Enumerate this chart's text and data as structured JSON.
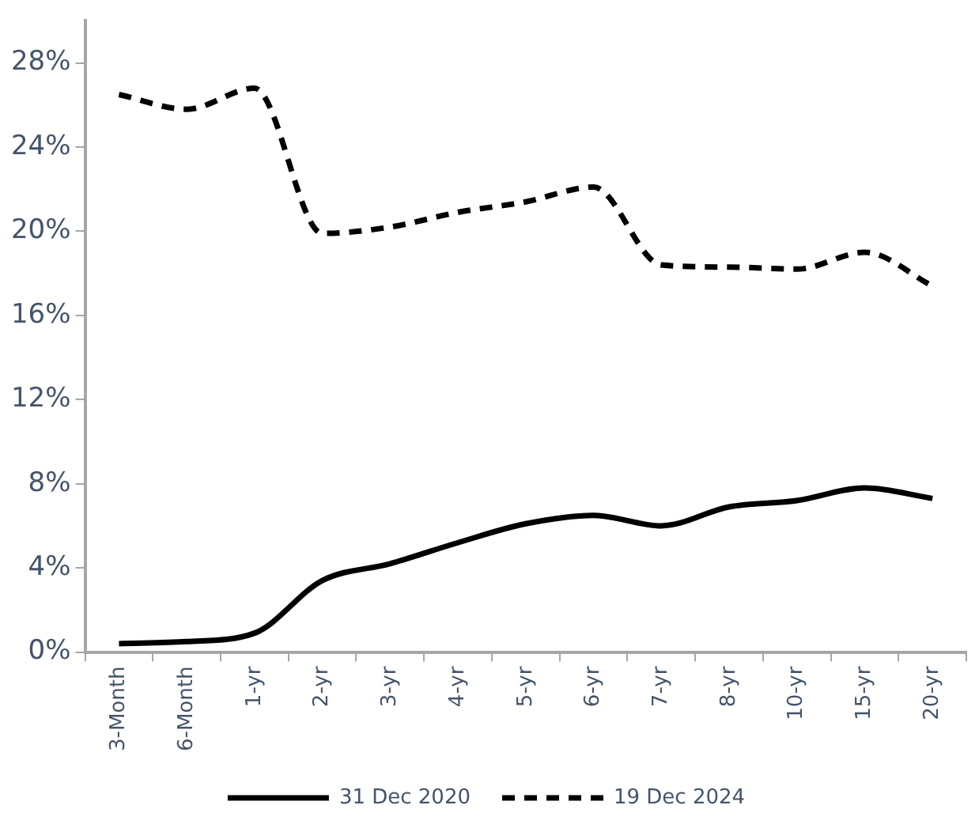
{
  "chart_data": {
    "type": "line",
    "categories": [
      "3-Month",
      "6-Month",
      "1-yr",
      "2-yr",
      "3-yr",
      "4-yr",
      "5-yr",
      "6-yr",
      "7-yr",
      "8-yr",
      "10-yr",
      "15-yr",
      "20-yr"
    ],
    "series": [
      {
        "name": "31 Dec 2020",
        "color": "#000000",
        "line_style": "solid",
        "values": [
          0.4,
          0.5,
          0.9,
          3.4,
          4.2,
          5.2,
          6.1,
          6.5,
          6.0,
          6.9,
          7.2,
          7.8,
          7.3
        ]
      },
      {
        "name": "19 Dec 2024",
        "color": "#000000",
        "line_style": "dashed",
        "values": [
          26.5,
          25.8,
          26.8,
          19.9,
          20.2,
          20.9,
          21.4,
          22.1,
          18.4,
          18.3,
          18.2,
          19.0,
          17.4
        ]
      }
    ],
    "ylim": [
      0,
      30
    ],
    "yticks": [
      {
        "value": 0,
        "label": "0%"
      },
      {
        "value": 4,
        "label": "4%"
      },
      {
        "value": 8,
        "label": "8%"
      },
      {
        "value": 12,
        "label": "12%"
      },
      {
        "value": 16,
        "label": "16%"
      },
      {
        "value": 20,
        "label": "20%"
      },
      {
        "value": 24,
        "label": "24%"
      },
      {
        "value": 28,
        "label": "28%"
      }
    ],
    "grid": false,
    "legend": "bottom",
    "marker": "none"
  }
}
